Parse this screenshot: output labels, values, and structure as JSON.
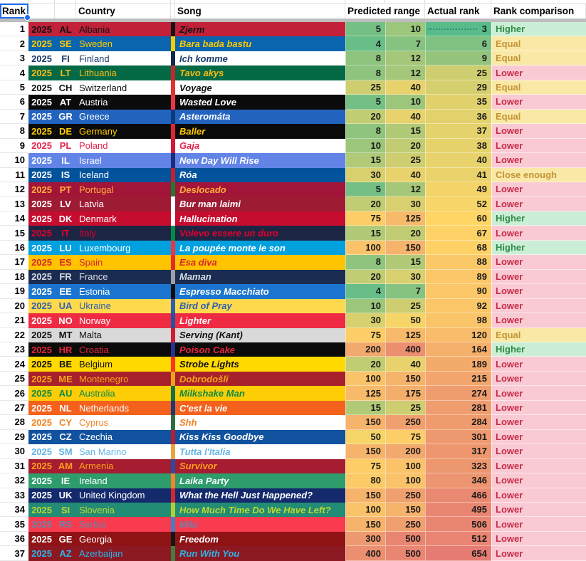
{
  "header": {
    "rank": "Rank",
    "country": "Country",
    "song": "Song",
    "predicted_range": "Predicted range",
    "actual_rank": "Actual rank",
    "rank_comparison": "Rank comparison"
  },
  "colors": {
    "gridline": "#e2e2e2",
    "frozen_divider": "#bdbdbd",
    "selection": "#1c6ced",
    "value_scale": {
      "min": {
        "value": 3,
        "hex": "#57bb8a"
      },
      "mid": {
        "value": 60,
        "hex": "#ffd666"
      },
      "max": {
        "value": 654,
        "hex": "#e67c73"
      }
    },
    "comparison": {
      "Higher": {
        "bg": "#cbefd6",
        "text": "#2f8a47"
      },
      "Equal": {
        "bg": "#fae9a6",
        "text": "#c29436"
      },
      "Close enough": {
        "bg": "#fae9a6",
        "text": "#c29436"
      },
      "Lower": {
        "bg": "#facad4",
        "text": "#c52b47"
      }
    }
  },
  "rows": [
    {
      "rank": 1,
      "year": "2025",
      "code": "AL",
      "country": "Albania",
      "song": "Zjerm",
      "pred_low": 5,
      "pred_high": 10,
      "actual": 3,
      "comparison": "Higher",
      "bg": "#c22139",
      "text": "#131313",
      "stripe": "#141414",
      "note_dotted": true
    },
    {
      "rank": 2,
      "year": "2025",
      "code": "SE",
      "country": "Sweden",
      "song": "Bara bada bastu",
      "pred_low": 4,
      "pred_high": 7,
      "actual": 6,
      "comparison": "Equal",
      "bg": "#0a64ae",
      "text": "#fecb00",
      "stripe": "#fecb00"
    },
    {
      "rank": 3,
      "year": "2025",
      "code": "FI",
      "country": "Finland",
      "song": "Ich komme",
      "pred_low": 8,
      "pred_high": 12,
      "actual": 9,
      "comparison": "Equal",
      "bg": "#ffffff",
      "text": "#1a3a6b",
      "stripe": "#0e2a52"
    },
    {
      "rank": 4,
      "year": "2025",
      "code": "LT",
      "country": "Lithuania",
      "song": "Tavo akys",
      "pred_low": 8,
      "pred_high": 12,
      "actual": 25,
      "comparison": "Lower",
      "bg": "#046a45",
      "text": "#fdb913",
      "stripe": "#c1272d"
    },
    {
      "rank": 5,
      "year": "2025",
      "code": "CH",
      "country": "Switzerland",
      "song": "Voyage",
      "pred_low": 25,
      "pred_high": 40,
      "actual": 29,
      "comparison": "Equal",
      "bg": "#ffffff",
      "text": "#111111",
      "stripe": "#e3342c"
    },
    {
      "rank": 6,
      "year": "2025",
      "code": "AT",
      "country": "Austria",
      "song": "Wasted Love",
      "pred_low": 5,
      "pred_high": 10,
      "actual": 35,
      "comparison": "Lower",
      "bg": "#0b0b0b",
      "text": "#ffffff",
      "stripe": "#ef3340"
    },
    {
      "rank": 7,
      "year": "2025",
      "code": "GR",
      "country": "Greece",
      "song": "Asteromáta",
      "pred_low": 20,
      "pred_high": 40,
      "actual": 36,
      "comparison": "Equal",
      "bg": "#2263bf",
      "text": "#ffffff",
      "stripe": "#0d3b7d"
    },
    {
      "rank": 8,
      "year": "2025",
      "code": "DE",
      "country": "Germany",
      "song": "Baller",
      "pred_low": 8,
      "pred_high": 15,
      "actual": 37,
      "comparison": "Lower",
      "bg": "#0b0b0b",
      "text": "#ffcc00",
      "stripe": "#e0262c"
    },
    {
      "rank": 9,
      "year": "2025",
      "code": "PL",
      "country": "Poland",
      "song": "Gaja",
      "pred_low": 10,
      "pred_high": 20,
      "actual": 38,
      "comparison": "Lower",
      "bg": "#ffffff",
      "text": "#e3244c",
      "stripe": "#d7153a"
    },
    {
      "rank": 10,
      "year": "2025",
      "code": "IL",
      "country": "Israel",
      "song": "New Day Will Rise",
      "pred_low": 15,
      "pred_high": 25,
      "actual": 40,
      "comparison": "Lower",
      "bg": "#6284e7",
      "text": "#ffffff",
      "stripe": "#1a2c7a"
    },
    {
      "rank": 11,
      "year": "2025",
      "code": "IS",
      "country": "Iceland",
      "song": "Róa",
      "pred_low": 30,
      "pred_high": 40,
      "actual": 41,
      "comparison": "Close enough",
      "bg": "#02529c",
      "text": "#ffffff",
      "stripe": "#c51f30"
    },
    {
      "rank": 12,
      "year": "2025",
      "code": "PT",
      "country": "Portugal",
      "song": "Deslocado",
      "pred_low": 5,
      "pred_high": 12,
      "actual": 49,
      "comparison": "Lower",
      "bg": "#a31538",
      "text": "#ffae3d",
      "stripe": "#1f7a33"
    },
    {
      "rank": 13,
      "year": "2025",
      "code": "LV",
      "country": "Latvia",
      "song": "Bur man laimi",
      "pred_low": 20,
      "pred_high": 30,
      "actual": 52,
      "comparison": "Lower",
      "bg": "#9e1b34",
      "text": "#ffffff",
      "stripe": "#ffffff"
    },
    {
      "rank": 14,
      "year": "2025",
      "code": "DK",
      "country": "Denmark",
      "song": "Hallucination",
      "pred_low": 75,
      "pred_high": 125,
      "actual": 60,
      "comparison": "Higher",
      "bg": "#c60c2f",
      "text": "#ffffff",
      "stripe": "#ffffff"
    },
    {
      "rank": 15,
      "year": "2025",
      "code": "IT",
      "country": "Italy",
      "song": "Volevo essere un duro",
      "pred_low": 15,
      "pred_high": 20,
      "actual": 67,
      "comparison": "Lower",
      "bg": "#1d2545",
      "text": "#e4002b",
      "stripe": "#008c45"
    },
    {
      "rank": 16,
      "year": "2025",
      "code": "LU",
      "country": "Luxembourg",
      "song": "La poupée monte le son",
      "pred_low": 100,
      "pred_high": 150,
      "actual": 68,
      "comparison": "Higher",
      "bg": "#00a1de",
      "text": "#ffffff",
      "stripe": "#ef3340"
    },
    {
      "rank": 17,
      "year": "2025",
      "code": "ES",
      "country": "Spain",
      "song": "Esa diva",
      "pred_low": 8,
      "pred_high": 15,
      "actual": 88,
      "comparison": "Lower",
      "bg": "#ffc400",
      "text": "#d6252c",
      "stripe": "#e02d2d"
    },
    {
      "rank": 18,
      "year": "2025",
      "code": "FR",
      "country": "France",
      "song": "Maman",
      "pred_low": 20,
      "pred_high": 30,
      "actual": 89,
      "comparison": "Lower",
      "bg": "#1a2c52",
      "text": "#d8dce4",
      "stripe": "#9aa0a6"
    },
    {
      "rank": 19,
      "year": "2025",
      "code": "EE",
      "country": "Estonia",
      "song": "Espresso Macchiato",
      "pred_low": 4,
      "pred_high": 7,
      "actual": 90,
      "comparison": "Lower",
      "bg": "#1b75d0",
      "text": "#ffffff",
      "stripe": "#101010"
    },
    {
      "rank": 20,
      "year": "2025",
      "code": "UA",
      "country": "Ukraine",
      "song": "Bird of Pray",
      "pred_low": 10,
      "pred_high": 25,
      "actual": 92,
      "comparison": "Lower",
      "bg": "#ffd94d",
      "text": "#3060ae",
      "stripe": "#2e5fad"
    },
    {
      "rank": 21,
      "year": "2025",
      "code": "NO",
      "country": "Norway",
      "song": "Lighter",
      "pred_low": 30,
      "pred_high": 50,
      "actual": 98,
      "comparison": "Lower",
      "bg": "#ef2b44",
      "text": "#ffffff",
      "stripe": "#2a4e9e"
    },
    {
      "rank": 22,
      "year": "2025",
      "code": "MT",
      "country": "Malta",
      "song": "Serving (Kant)",
      "pred_low": 75,
      "pred_high": 125,
      "actual": 120,
      "comparison": "Equal",
      "bg": "#d9d9d9",
      "text": "#121212",
      "stripe": "#d01d32"
    },
    {
      "rank": 23,
      "year": "2025",
      "code": "HR",
      "country": "Croatia",
      "song": "Poison Cake",
      "pred_low": 200,
      "pred_high": 400,
      "actual": 164,
      "comparison": "Higher",
      "bg": "#0b0b0b",
      "text": "#e8253c",
      "stripe": "#27328f"
    },
    {
      "rank": 24,
      "year": "2025",
      "code": "BE",
      "country": "Belgium",
      "song": "Strobe Lights",
      "pred_low": 20,
      "pred_high": 40,
      "actual": 189,
      "comparison": "Lower",
      "bg": "#ffd900",
      "text": "#121212",
      "stripe": "#ff3224"
    },
    {
      "rank": 25,
      "year": "2025",
      "code": "ME",
      "country": "Montenegro",
      "song": "Dobrodošli",
      "pred_low": 100,
      "pred_high": 150,
      "actual": 215,
      "comparison": "Lower",
      "bg": "#a8202c",
      "text": "#f4a418",
      "stripe": "#e9a21e"
    },
    {
      "rank": 26,
      "year": "2025",
      "code": "AU",
      "country": "Australia",
      "song": "Milkshake Man",
      "pred_low": 125,
      "pred_high": 175,
      "actual": 274,
      "comparison": "Lower",
      "bg": "#ffcd05",
      "text": "#0a8a45",
      "stripe": "#157145"
    },
    {
      "rank": 27,
      "year": "2025",
      "code": "NL",
      "country": "Netherlands",
      "song": "C'est la vie",
      "pred_low": 15,
      "pred_high": 25,
      "actual": 281,
      "comparison": "Lower",
      "bg": "#f4611d",
      "text": "#ffffff",
      "stripe": "#173a75"
    },
    {
      "rank": 28,
      "year": "2025",
      "code": "CY",
      "country": "Cyprus",
      "song": "Shh",
      "pred_low": 150,
      "pred_high": 250,
      "actual": 284,
      "comparison": "Lower",
      "bg": "#ffffff",
      "text": "#f08223",
      "stripe": "#2e6b3e"
    },
    {
      "rank": 29,
      "year": "2025",
      "code": "CZ",
      "country": "Czechia",
      "song": "Kiss Kiss Goodbye",
      "pred_low": 50,
      "pred_high": 75,
      "actual": 301,
      "comparison": "Lower",
      "bg": "#11529e",
      "text": "#ffffff",
      "stripe": "#b51f33"
    },
    {
      "rank": 30,
      "year": "2025",
      "code": "SM",
      "country": "San Marino",
      "song": "Tutta l'Italia",
      "pred_low": 150,
      "pred_high": 200,
      "actual": 317,
      "comparison": "Lower",
      "bg": "#ffffff",
      "text": "#62b5e5",
      "stripe": "#e8a33d"
    },
    {
      "rank": 31,
      "year": "2025",
      "code": "AM",
      "country": "Armenia",
      "song": "Survivor",
      "pred_low": 75,
      "pred_high": 100,
      "actual": 323,
      "comparison": "Lower",
      "bg": "#a61c30",
      "text": "#ff9e1b",
      "stripe": "#2a4ba0"
    },
    {
      "rank": 32,
      "year": "2025",
      "code": "IE",
      "country": "Ireland",
      "song": "Laika Party",
      "pred_low": 80,
      "pred_high": 100,
      "actual": 346,
      "comparison": "Lower",
      "bg": "#2f9c6c",
      "text": "#ffffff",
      "stripe": "#f1852d"
    },
    {
      "rank": 33,
      "year": "2025",
      "code": "UK",
      "country": "United Kingdom",
      "song": "What the Hell Just Happened?",
      "pred_low": 150,
      "pred_high": 250,
      "actual": 466,
      "comparison": "Lower",
      "bg": "#142a6d",
      "text": "#ffffff",
      "stripe": "#d22730"
    },
    {
      "rank": 34,
      "year": "2025",
      "code": "SI",
      "country": "Slovenia",
      "song": "How Much Time Do We Have Left?",
      "pred_low": 100,
      "pred_high": 150,
      "actual": 495,
      "comparison": "Lower",
      "bg": "#228c74",
      "text": "#bfd732",
      "stripe": "#afd135"
    },
    {
      "rank": 35,
      "year": "2025",
      "code": "RS",
      "country": "Serbia",
      "song": "Mila",
      "pred_low": 150,
      "pred_high": 250,
      "actual": 506,
      "comparison": "Lower",
      "bg": "#f83b4e",
      "text": "#6a84a8",
      "stripe": "#4a7cc1"
    },
    {
      "rank": 36,
      "year": "2025",
      "code": "GE",
      "country": "Georgia",
      "song": "Freedom",
      "pred_low": 300,
      "pred_high": 500,
      "actual": 512,
      "comparison": "Lower",
      "bg": "#8f1315",
      "text": "#ffffff",
      "stripe": "#151515"
    },
    {
      "rank": 37,
      "year": "2025",
      "code": "AZ",
      "country": "Azerbaijan",
      "song": "Run With You",
      "pred_low": 400,
      "pred_high": 500,
      "actual": 654,
      "comparison": "Lower",
      "bg": "#8c1822",
      "text": "#29b6e8",
      "stripe": "#3e7f41"
    }
  ]
}
